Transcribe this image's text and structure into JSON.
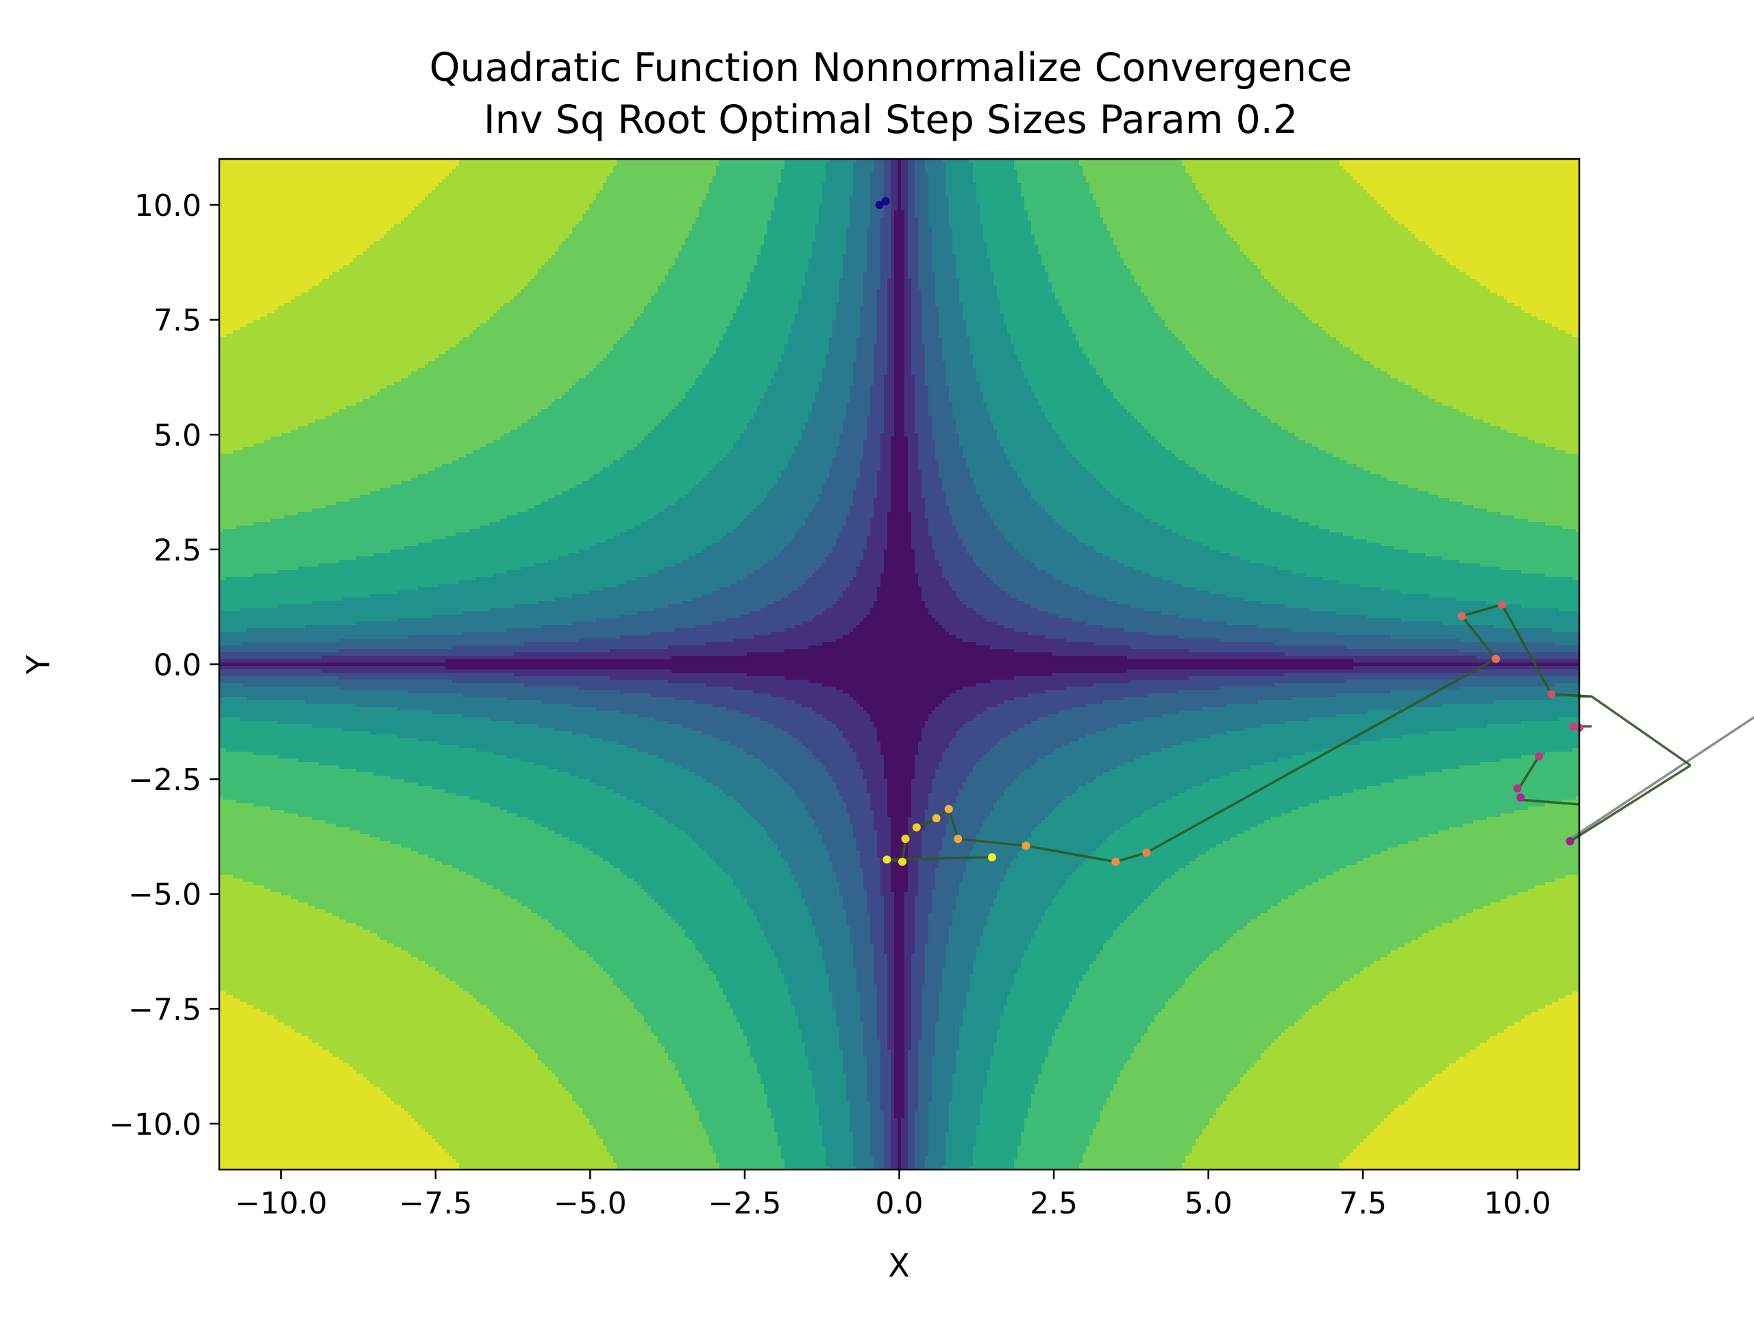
{
  "chart_data": {
    "type": "contour",
    "title_line1": "Quadratic Function Nonnormalize Convergence",
    "title_line2": "Inv Sq Root Optimal Step Sizes Param 0.2",
    "xlabel": "X",
    "ylabel": "Y",
    "xlim": [
      -11,
      11
    ],
    "ylim": [
      -11,
      11
    ],
    "xticks": [
      -10,
      -7.5,
      -5,
      -2.5,
      0,
      2.5,
      5,
      7.5,
      10
    ],
    "yticks": [
      -10,
      -7.5,
      -5,
      -2.5,
      0,
      2.5,
      5,
      7.5,
      10
    ],
    "xtick_labels": [
      "−10.0",
      "−7.5",
      "−5.0",
      "−2.5",
      "0.0",
      "2.5",
      "5.0",
      "7.5",
      "10.0"
    ],
    "ytick_labels": [
      "−10.0",
      "−7.5",
      "−5.0",
      "−2.5",
      "0.0",
      "2.5",
      "5.0",
      "7.5",
      "10.0"
    ],
    "colormap": "viridis",
    "grid": false,
    "trajectory_color": "#2d5a1f",
    "trajectory": [
      {
        "x": 10.8,
        "y": -3.9
      },
      {
        "x": 12.8,
        "y": -2.2
      },
      {
        "x": 11.2,
        "y": -0.7
      },
      {
        "x": 10.55,
        "y": -0.65
      },
      {
        "x": 9.75,
        "y": 1.3
      },
      {
        "x": 9.1,
        "y": 1.05
      },
      {
        "x": 9.65,
        "y": 0.12
      },
      {
        "x": 4.0,
        "y": -4.1
      },
      {
        "x": 3.5,
        "y": -4.3
      },
      {
        "x": 2.05,
        "y": -3.95
      },
      {
        "x": 0.95,
        "y": -3.8
      },
      {
        "x": 0.8,
        "y": -3.15
      },
      {
        "x": 0.6,
        "y": -3.35
      },
      {
        "x": 0.28,
        "y": -3.55
      },
      {
        "x": 0.1,
        "y": -3.8
      },
      {
        "x": 0.05,
        "y": -4.3
      },
      {
        "x": -0.2,
        "y": -4.25
      },
      {
        "x": 1.5,
        "y": -4.2
      }
    ],
    "extra_segments": [
      [
        {
          "x": 11.2,
          "y": -1.35
        },
        {
          "x": 10.9,
          "y": -1.35
        }
      ],
      [
        {
          "x": 10.35,
          "y": -2.0
        },
        {
          "x": 10.0,
          "y": -2.75
        }
      ],
      [
        {
          "x": 10.05,
          "y": -2.95
        },
        {
          "x": 11.0,
          "y": -3.05
        }
      ],
      [
        {
          "x": 11.0,
          "y": -0.7
        },
        {
          "x": 11.2,
          "y": -0.7
        }
      ]
    ],
    "gray_segment": [
      {
        "x": 10.8,
        "y": -3.85
      },
      {
        "x": 14.0,
        "y": -1.0
      }
    ],
    "points": [
      {
        "x": -0.32,
        "y": 10.0,
        "c": 0.02
      },
      {
        "x": -0.22,
        "y": 10.08,
        "c": 0.03
      },
      {
        "x": 10.85,
        "y": -3.85,
        "c": 0.35
      },
      {
        "x": 10.05,
        "y": -2.9,
        "c": 0.38
      },
      {
        "x": 10.0,
        "y": -2.7,
        "c": 0.42
      },
      {
        "x": 10.35,
        "y": -2.0,
        "c": 0.45
      },
      {
        "x": 10.9,
        "y": -1.35,
        "c": 0.48
      },
      {
        "x": 11.0,
        "y": -1.38,
        "c": 0.49
      },
      {
        "x": 10.55,
        "y": -0.65,
        "c": 0.52
      },
      {
        "x": 9.75,
        "y": 1.3,
        "c": 0.56
      },
      {
        "x": 9.1,
        "y": 1.05,
        "c": 0.6
      },
      {
        "x": 9.65,
        "y": 0.12,
        "c": 0.64
      },
      {
        "x": 4.0,
        "y": -4.1,
        "c": 0.68
      },
      {
        "x": 3.5,
        "y": -4.3,
        "c": 0.72
      },
      {
        "x": 2.05,
        "y": -3.95,
        "c": 0.76
      },
      {
        "x": 0.95,
        "y": -3.8,
        "c": 0.8
      },
      {
        "x": 0.8,
        "y": -3.15,
        "c": 0.83
      },
      {
        "x": 0.6,
        "y": -3.35,
        "c": 0.85
      },
      {
        "x": 0.28,
        "y": -3.55,
        "c": 0.88
      },
      {
        "x": 0.1,
        "y": -3.8,
        "c": 0.9
      },
      {
        "x": 0.05,
        "y": -4.3,
        "c": 0.93
      },
      {
        "x": -0.2,
        "y": -4.25,
        "c": 0.96
      },
      {
        "x": 1.5,
        "y": -4.2,
        "c": 0.99
      }
    ]
  }
}
